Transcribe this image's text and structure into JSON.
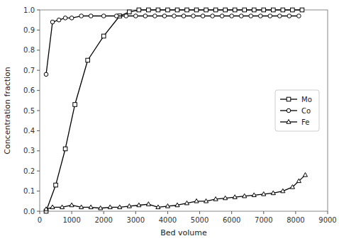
{
  "chart_data": {
    "type": "line",
    "x_label": "Bed volume",
    "y_label": "Concentration fraction",
    "series": [
      {
        "name": "Mo",
        "color": "#000000",
        "marker": "square",
        "line_style": "solid",
        "x": [
          200,
          500,
          800,
          1100,
          1500,
          2000,
          2500,
          2800,
          3100,
          3400,
          3700,
          4000,
          4300,
          4600,
          4900,
          5200,
          5500,
          5800,
          6100,
          6400,
          6700,
          7000,
          7300,
          7600,
          7900,
          8200
        ],
        "values": [
          0.0,
          0.13,
          0.31,
          0.53,
          0.75,
          0.87,
          0.97,
          0.99,
          1.0,
          1.0,
          1.0,
          1.0,
          1.0,
          1.0,
          1.0,
          1.0,
          1.0,
          1.0,
          1.0,
          1.0,
          1.0,
          1.0,
          1.0,
          1.0,
          1.0,
          1.0
        ]
      },
      {
        "name": "Co",
        "color": "#000000",
        "marker": "circle",
        "line_style": "solid",
        "x": [
          200,
          400,
          600,
          800,
          1000,
          1300,
          1600,
          2000,
          2400,
          2700,
          3000,
          3300,
          3600,
          3900,
          4200,
          4500,
          4800,
          5100,
          5400,
          5700,
          6000,
          6300,
          6600,
          6900,
          7200,
          7500,
          7800,
          8100
        ],
        "values": [
          0.68,
          0.94,
          0.95,
          0.96,
          0.96,
          0.97,
          0.97,
          0.97,
          0.97,
          0.97,
          0.97,
          0.97,
          0.97,
          0.97,
          0.97,
          0.97,
          0.97,
          0.97,
          0.97,
          0.97,
          0.97,
          0.97,
          0.97,
          0.97,
          0.97,
          0.97,
          0.97,
          0.97
        ]
      },
      {
        "name": "Fe",
        "color": "#000000",
        "marker": "triangle",
        "line_style": "solid",
        "x": [
          200,
          400,
          700,
          1000,
          1300,
          1600,
          1900,
          2200,
          2500,
          2800,
          3100,
          3400,
          3700,
          4000,
          4300,
          4600,
          4900,
          5200,
          5500,
          5800,
          6100,
          6400,
          6700,
          7000,
          7300,
          7600,
          7900,
          8100,
          8300
        ],
        "values": [
          0.01,
          0.02,
          0.02,
          0.03,
          0.02,
          0.02,
          0.015,
          0.02,
          0.02,
          0.025,
          0.03,
          0.035,
          0.02,
          0.025,
          0.03,
          0.04,
          0.05,
          0.05,
          0.06,
          0.065,
          0.07,
          0.075,
          0.08,
          0.085,
          0.09,
          0.1,
          0.12,
          0.15,
          0.18
        ]
      }
    ],
    "xlim": [
      0,
      9000
    ],
    "ylim": [
      0.0,
      1.0
    ],
    "xticks": [
      0,
      1000,
      2000,
      3000,
      4000,
      5000,
      6000,
      7000,
      8000,
      9000
    ],
    "yticks": [
      {
        "value": 0.0,
        "label": "0.0"
      },
      0.1,
      0.2,
      0.3,
      0.4,
      0.5,
      0.6,
      0.7,
      0.8,
      0.9,
      {
        "value": 1.0,
        "label": "1.0"
      }
    ],
    "grid": false,
    "legend": "right"
  }
}
